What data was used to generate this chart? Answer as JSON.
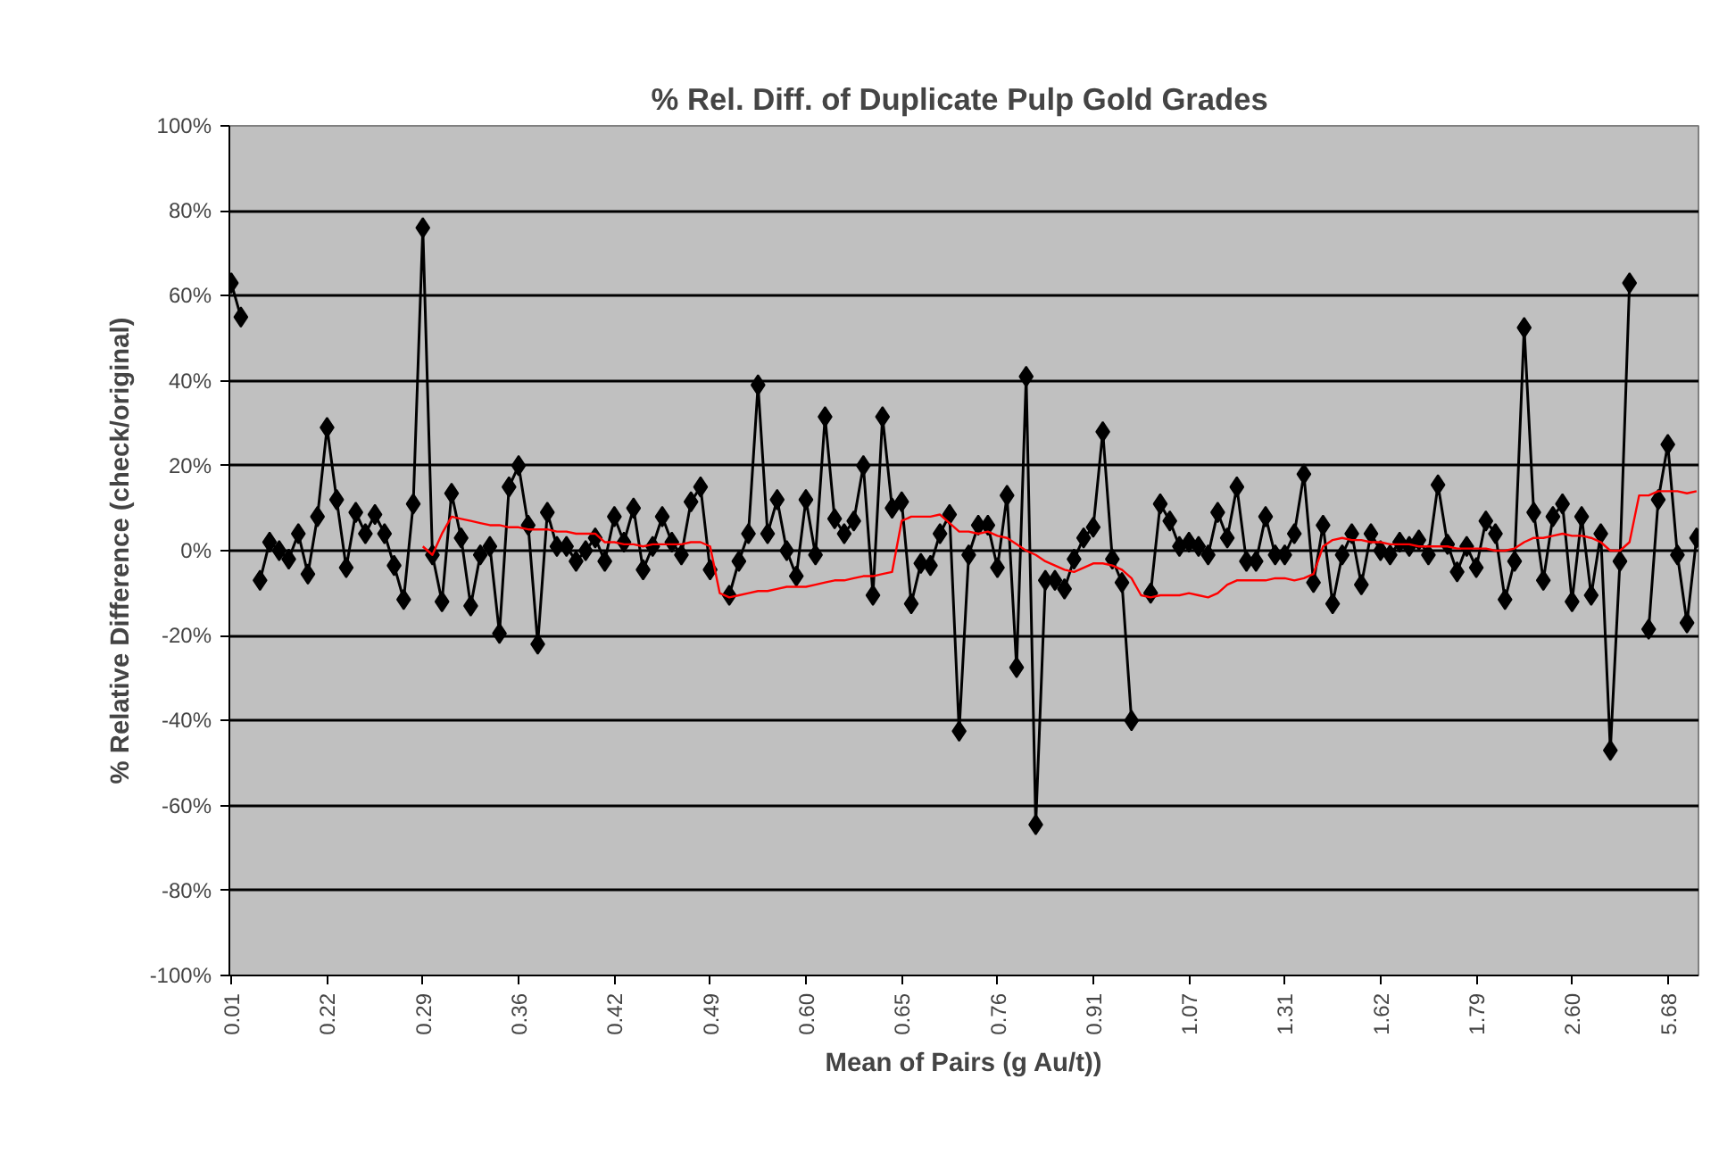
{
  "chart_data": {
    "type": "line",
    "title": "% Rel. Diff. of Duplicate  Pulp Gold Grades",
    "xlabel": "Mean of Pairs (g Au/t))",
    "ylabel": "% Relative Difference (check/original)",
    "categories": [
      "0.01",
      null,
      null,
      null,
      null,
      null,
      null,
      null,
      null,
      null,
      "0.22",
      null,
      null,
      null,
      null,
      null,
      null,
      null,
      null,
      null,
      "0.29",
      null,
      null,
      null,
      null,
      null,
      null,
      null,
      null,
      null,
      "0.36",
      null,
      null,
      null,
      null,
      null,
      null,
      null,
      null,
      null,
      "0.42",
      null,
      null,
      null,
      null,
      null,
      null,
      null,
      null,
      null,
      "0.49",
      null,
      null,
      null,
      null,
      null,
      null,
      null,
      null,
      null,
      "0.60",
      null,
      null,
      null,
      null,
      null,
      null,
      null,
      null,
      null,
      "0.65",
      null,
      null,
      null,
      null,
      null,
      null,
      null,
      null,
      null,
      "0.76",
      null,
      null,
      null,
      null,
      null,
      null,
      null,
      null,
      null,
      "0.91",
      null,
      null,
      null,
      null,
      null,
      null,
      null,
      null,
      null,
      "1.07",
      null,
      null,
      null,
      null,
      null,
      null,
      null,
      null,
      null,
      "1.31",
      null,
      null,
      null,
      null,
      null,
      null,
      null,
      null,
      null,
      "1.62",
      null,
      null,
      null,
      null,
      null,
      null,
      null,
      null,
      null,
      "1.79",
      null,
      null,
      null,
      null,
      null,
      null,
      null,
      null,
      null,
      "2.60",
      null,
      null,
      null,
      null,
      null,
      null,
      null,
      null,
      null,
      "5.68",
      null,
      null,
      null
    ],
    "series": [
      {
        "color": "#000000",
        "marker": "diamond",
        "values": [
          63,
          55,
          null,
          -7,
          2,
          0,
          -2,
          4,
          -5.5,
          8,
          29,
          12,
          -4,
          9,
          4,
          8.5,
          4,
          -3.5,
          -11.5,
          11,
          76,
          -1,
          -12,
          13.5,
          3,
          -13,
          -1,
          1,
          -19.5,
          15,
          20,
          6,
          -22,
          9,
          1,
          1,
          -2.5,
          0,
          3,
          -2.5,
          8,
          2,
          10,
          -4.5,
          1,
          8,
          2,
          -1,
          11.5,
          15,
          -4.5,
          null,
          -10.5,
          -2.5,
          4,
          39,
          4,
          12,
          0,
          -6,
          12,
          -1,
          31.5,
          7.5,
          4,
          7,
          20,
          -10.5,
          31.5,
          10,
          11.5,
          -12.5,
          -3,
          -3.5,
          4,
          8.5,
          -42.5,
          -1,
          6,
          6,
          -4,
          13,
          -27.5,
          41,
          -64.5,
          -7,
          -7,
          -9,
          -2,
          3,
          5.5,
          28,
          -2,
          -7.5,
          -40,
          null,
          -10,
          11,
          7,
          1,
          2,
          1,
          -1,
          9,
          3,
          15,
          -2.5,
          -2.5,
          8,
          -1,
          -1,
          4,
          18,
          -7.5,
          6,
          -12.5,
          -1,
          4,
          -8,
          4,
          0,
          -1,
          2,
          1,
          2.5,
          -1,
          15.5,
          1.5,
          -5,
          1,
          -4,
          7,
          4,
          -11.5,
          -2.5,
          52.5,
          9,
          -7,
          8,
          11,
          -12,
          8,
          -10.5,
          4,
          -47,
          -2.5,
          63,
          null,
          -18.5,
          12,
          25,
          -1,
          -17,
          3
        ]
      },
      {
        "color": "#ff0000",
        "marker": "none",
        "values": [
          null,
          null,
          null,
          null,
          null,
          null,
          null,
          null,
          null,
          null,
          null,
          null,
          null,
          null,
          null,
          null,
          null,
          null,
          null,
          null,
          1,
          -1,
          4,
          8,
          7.5,
          7,
          6.5,
          6,
          6,
          5.5,
          5.5,
          5,
          5,
          5,
          4.5,
          4.5,
          4,
          4,
          4,
          2,
          2,
          1.5,
          1.5,
          1,
          1.5,
          1.5,
          1.5,
          1.5,
          2,
          2,
          1,
          -10,
          -11,
          -10.5,
          -10,
          -9.5,
          -9.5,
          -9,
          -8.5,
          -8.5,
          -8.5,
          -8,
          -7.5,
          -7,
          -7,
          -6.5,
          -6,
          -6,
          -5.5,
          -5,
          7,
          8,
          8,
          8,
          8.5,
          6.5,
          4.5,
          4.5,
          4,
          4.5,
          3.5,
          3,
          1.5,
          0,
          -1,
          -2.5,
          -3.5,
          -4.5,
          -5,
          -4,
          -3,
          -3,
          -3.5,
          -4.5,
          -6.5,
          -10.5,
          -11,
          -10.5,
          -10.5,
          -10.5,
          -10,
          -10.5,
          -11,
          -10,
          -8,
          -7,
          -7,
          -7,
          -7,
          -6.5,
          -6.5,
          -7,
          -6.5,
          -5.5,
          1,
          2.5,
          3,
          2.5,
          2.5,
          2,
          2,
          1.5,
          1.5,
          1.5,
          1,
          1,
          1,
          1,
          0.5,
          0.5,
          0.5,
          0.5,
          0,
          0,
          0.5,
          2,
          3,
          3,
          3.5,
          4,
          3.5,
          3.5,
          3,
          2,
          0,
          0,
          2,
          13,
          13,
          14,
          14,
          14,
          13.5,
          14
        ]
      }
    ],
    "ylim": [
      -100,
      100
    ],
    "yticks": [
      {
        "value": -100,
        "label": "-100%"
      },
      {
        "value": -80,
        "label": "-80%"
      },
      {
        "value": -60,
        "label": "-60%"
      },
      {
        "value": -40,
        "label": "-40%"
      },
      {
        "value": -20,
        "label": "-20%"
      },
      {
        "value": 0,
        "label": "0%"
      },
      {
        "value": 20,
        "label": "20%"
      },
      {
        "value": 40,
        "label": "40%"
      },
      {
        "value": 60,
        "label": "60%"
      },
      {
        "value": 80,
        "label": "80%"
      },
      {
        "value": 100,
        "label": "100%"
      }
    ],
    "grid": "y"
  }
}
